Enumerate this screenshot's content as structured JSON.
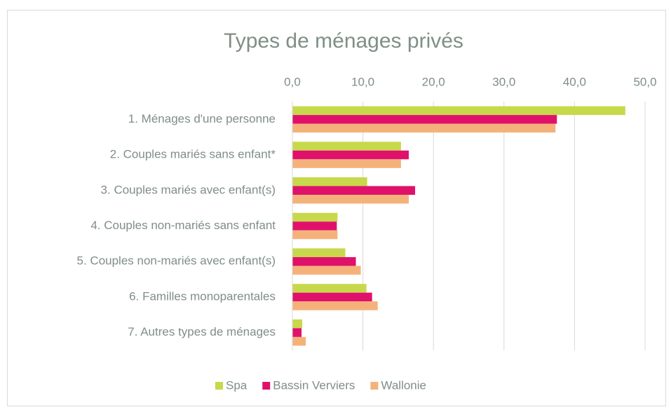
{
  "chart_data": {
    "type": "hbar",
    "title": "Types de ménages privés",
    "categories": [
      "1. Ménages d'une personne",
      "2. Couples mariés sans enfant*",
      "3. Couples mariés avec enfant(s)",
      "4. Couples non-mariés sans enfant",
      "5. Couples non-mariés avec enfant(s)",
      "6. Familles monoparentales",
      "7. Autres types de ménages"
    ],
    "series": [
      {
        "name": "Spa",
        "color": "#c8d84b",
        "values": [
          47.2,
          15.4,
          10.6,
          6.4,
          7.5,
          10.5,
          1.4
        ]
      },
      {
        "name": "Bassin Verviers",
        "color": "#e0116b",
        "values": [
          37.5,
          16.5,
          17.4,
          6.3,
          9.0,
          11.3,
          1.3
        ]
      },
      {
        "name": "Wallonie",
        "color": "#f4b27a",
        "values": [
          37.3,
          15.4,
          16.5,
          6.4,
          9.7,
          12.1,
          1.9
        ]
      }
    ],
    "xlim": [
      0,
      50
    ],
    "xticks": [
      {
        "value": 0,
        "label": "0,0"
      },
      {
        "value": 10,
        "label": "10,0"
      },
      {
        "value": 20,
        "label": "20,0"
      },
      {
        "value": 30,
        "label": "30,0"
      },
      {
        "value": 40,
        "label": "40,0"
      },
      {
        "value": 50,
        "label": "50,0"
      }
    ],
    "grid": true,
    "legend": "bottom"
  }
}
